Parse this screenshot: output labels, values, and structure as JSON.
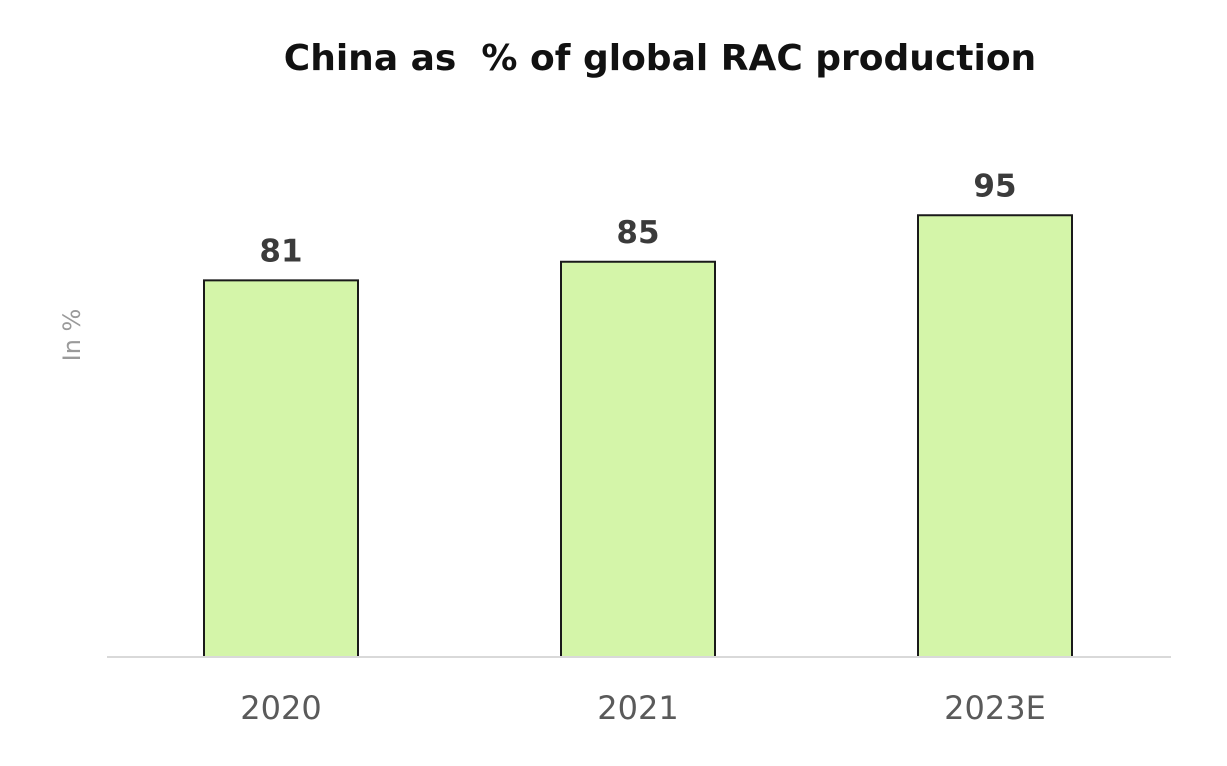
{
  "chart_data": {
    "type": "bar",
    "title": "China as  % of global RAC production",
    "xlabel": "",
    "ylabel": "In %",
    "categories": [
      "2020",
      "2021",
      "2023E"
    ],
    "values": [
      81,
      85,
      95
    ],
    "ylim": [
      0,
      100
    ],
    "grid": false,
    "colors": {
      "bar_fill": "#d4f5a9",
      "bar_stroke": "#1a1a1a",
      "value_label": "#3b3b3b",
      "tick_label": "#5a5a5a",
      "axis_label": "#9a9a9a",
      "baseline": "#d9d9d9"
    }
  }
}
